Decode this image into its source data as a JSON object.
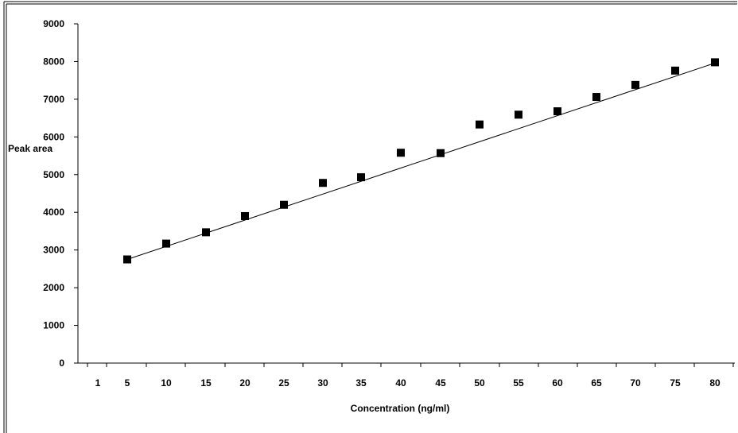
{
  "chart_data": {
    "type": "scatter",
    "title": "",
    "xlabel": "Concentration (ng/ml)",
    "ylabel": "Peak area",
    "x_tick_labels": [
      "1",
      "5",
      "10",
      "15",
      "20",
      "25",
      "30",
      "35",
      "40",
      "45",
      "50",
      "55",
      "60",
      "65",
      "70",
      "75",
      "80"
    ],
    "y_tick_labels": [
      "0",
      "1000",
      "2000",
      "3000",
      "4000",
      "5000",
      "6000",
      "7000",
      "8000",
      "9000"
    ],
    "ylim": [
      0,
      9000
    ],
    "grid": false,
    "legend": "none",
    "marker": "square",
    "marker_color": "#000000",
    "series": [
      {
        "points": [
          {
            "x": 5,
            "y": 2750
          },
          {
            "x": 10,
            "y": 3170
          },
          {
            "x": 15,
            "y": 3470
          },
          {
            "x": 20,
            "y": 3900
          },
          {
            "x": 25,
            "y": 4200
          },
          {
            "x": 30,
            "y": 4780
          },
          {
            "x": 35,
            "y": 4930
          },
          {
            "x": 40,
            "y": 5580
          },
          {
            "x": 45,
            "y": 5570
          },
          {
            "x": 50,
            "y": 6330
          },
          {
            "x": 55,
            "y": 6590
          },
          {
            "x": 60,
            "y": 6680
          },
          {
            "x": 65,
            "y": 7060
          },
          {
            "x": 70,
            "y": 7380
          },
          {
            "x": 75,
            "y": 7760
          },
          {
            "x": 80,
            "y": 7980
          }
        ]
      }
    ],
    "trendline": {
      "x": [
        5,
        80
      ],
      "y": [
        2750,
        7960
      ]
    }
  }
}
